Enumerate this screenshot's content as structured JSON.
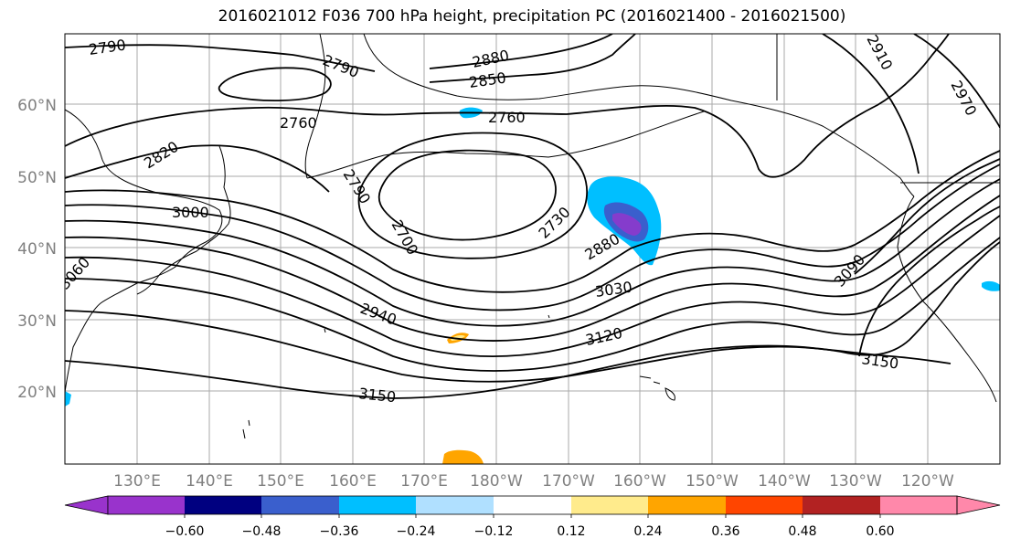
{
  "title": "2016021012 F036 700 hPa height, precipitation PC (2016021400 - 2016021500)",
  "lat_labels": [
    "60°N",
    "50°N",
    "40°N",
    "30°N",
    "20°N"
  ],
  "lon_labels": [
    "130°E",
    "140°E",
    "150°E",
    "160°E",
    "170°E",
    "180°W",
    "170°W",
    "160°W",
    "150°W",
    "140°W",
    "130°W",
    "120°W"
  ],
  "contour_labels": [
    "2790",
    "2790",
    "2880",
    "2850",
    "2760",
    "2760",
    "2820",
    "2790",
    "3000",
    "2700",
    "2730",
    "2880",
    "3060",
    "3030",
    "2940",
    "3120",
    "3150",
    "3150",
    "3090",
    "2910",
    "2970"
  ],
  "colorbar": {
    "colors": [
      "#9933cc",
      "#000080",
      "#3a5fcd",
      "#00bfff",
      "#b0e0ff",
      "#ffffff",
      "#ffeb8c",
      "#ffa500",
      "#ff4500",
      "#b22222",
      "#ff88aa"
    ],
    "tick_labels": [
      "−0.60",
      "−0.48",
      "−0.36",
      "−0.24",
      "−0.12",
      "0.12",
      "0.24",
      "0.36",
      "0.48",
      "0.60"
    ]
  },
  "colors": {
    "axis_label": "#808080",
    "grid": "#aaaaaa",
    "contour": "#000000"
  }
}
